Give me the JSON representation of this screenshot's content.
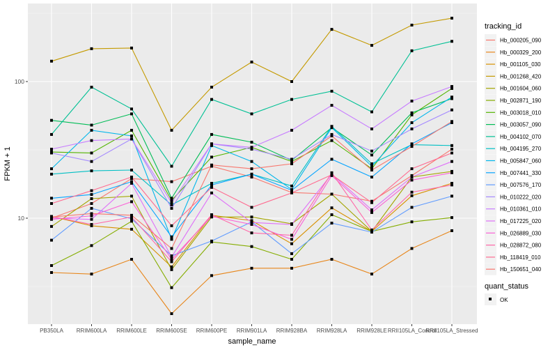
{
  "chart_data": {
    "type": "line",
    "title": "",
    "xlabel": "sample_name",
    "ylabel": "FPKM + 1",
    "yscale": "log10",
    "ylim": [
      1.75,
      400
    ],
    "yticks": [
      10,
      100
    ],
    "ytick_labels": [
      "10",
      "100"
    ],
    "grid": true,
    "legend_position": "right",
    "categories": [
      "PB350LA",
      "RRIM600LA",
      "RRIM600LE",
      "RRIM600SE",
      "RRIM600PE",
      "RRIM901LA",
      "RRIM928BA",
      "RRIM928LA",
      "RRIM928LE",
      "RRII105LA_Control",
      "RRII105LA_Stressed"
    ],
    "legend_title": "tracking_id",
    "shape_legend_title": "quant_status",
    "shape_legend_label": "OK",
    "series": [
      {
        "name": "Hb_000205_090",
        "color": "#F8766D",
        "values": [
          10.0,
          12.8,
          19.5,
          18.5,
          24,
          20,
          15.4,
          15.0,
          13.3,
          20.5,
          32
        ]
      },
      {
        "name": "Hb_000329_200",
        "color": "#E7861B",
        "values": [
          4.0,
          3.9,
          5.0,
          2.0,
          3.8,
          4.3,
          4.3,
          5.0,
          3.9,
          6.0,
          8.1
        ]
      },
      {
        "name": "Hb_001105_030",
        "color": "#D89000",
        "values": [
          10.3,
          8.8,
          8.3,
          4.4,
          10.5,
          9.6,
          6.5,
          11.9,
          8.0,
          14.6,
          18.0
        ]
      },
      {
        "name": "Hb_001268_420",
        "color": "#C49A00",
        "values": [
          141,
          174,
          176,
          44,
          91,
          139,
          100,
          241,
          184,
          259,
          291
        ]
      },
      {
        "name": "Hb_001604_060",
        "color": "#A3A500",
        "values": [
          8.7,
          13.9,
          14.5,
          4.2,
          10.2,
          10.2,
          9.1,
          15.0,
          8.0,
          20.0,
          22.0
        ]
      },
      {
        "name": "Hb_002871_190",
        "color": "#85AD00",
        "values": [
          4.5,
          6.3,
          9.5,
          3.1,
          6.7,
          6.2,
          5.0,
          10.6,
          8.0,
          9.4,
          10.1
        ]
      },
      {
        "name": "Hb_003018_010",
        "color": "#53B400",
        "values": [
          30.5,
          30.0,
          44,
          13.5,
          28,
          33,
          26,
          37,
          23,
          57,
          89
        ]
      },
      {
        "name": "Hb_003057_090",
        "color": "#00BC56",
        "values": [
          52,
          48,
          58,
          14,
          41,
          36,
          26.5,
          46,
          29,
          59,
          75
        ]
      },
      {
        "name": "Hb_004102_070",
        "color": "#00C094",
        "values": [
          41,
          91,
          63,
          24,
          74,
          58,
          74,
          85,
          60,
          168,
          197
        ]
      },
      {
        "name": "Hb_004195_270",
        "color": "#00BFC4",
        "values": [
          21,
          22.2,
          22.5,
          12.5,
          18,
          21,
          17.2,
          47,
          25,
          34.5,
          34
        ]
      },
      {
        "name": "Hb_005847_060",
        "color": "#00B6EB",
        "values": [
          23,
          44,
          40,
          7.0,
          34,
          26,
          16.2,
          46,
          24,
          50,
          77
        ]
      },
      {
        "name": "Hb_007441_330",
        "color": "#06A4FF",
        "values": [
          14.0,
          14.9,
          18.5,
          7.3,
          17.5,
          21,
          16.0,
          27,
          20,
          35,
          50
        ]
      },
      {
        "name": "Hb_007576_170",
        "color": "#619CFF",
        "values": [
          6.9,
          11.8,
          9.9,
          5.3,
          6.8,
          9.4,
          5.5,
          9.2,
          7.9,
          12,
          14.5
        ]
      },
      {
        "name": "Hb_010222_020",
        "color": "#A58AFF",
        "values": [
          30,
          26,
          38,
          11.8,
          35,
          32,
          27,
          41,
          31,
          45,
          62
        ]
      },
      {
        "name": "Hb_010361_010",
        "color": "#C77CFF",
        "values": [
          32,
          37,
          38,
          13.0,
          35,
          33,
          44,
          67,
          45,
          72,
          92
        ]
      },
      {
        "name": "Hb_017225_020",
        "color": "#DF70F8",
        "values": [
          10.0,
          9.8,
          18.0,
          5.2,
          15.3,
          9.3,
          9.0,
          21,
          11.5,
          20,
          26
        ]
      },
      {
        "name": "Hb_026889_030",
        "color": "#FB61D7",
        "values": [
          9.8,
          10.4,
          13.2,
          5.0,
          10.3,
          9.0,
          7.0,
          20.5,
          11.0,
          19,
          21.5
        ]
      },
      {
        "name": "Hb_028872_080",
        "color": "#FF66A8",
        "values": [
          10.3,
          9.0,
          10.2,
          4.8,
          10.6,
          7.8,
          7.5,
          21.5,
          8.2,
          15.5,
          17.5
        ]
      },
      {
        "name": "Hb_118419_010",
        "color": "#FF6C91",
        "values": [
          12.8,
          15.9,
          20,
          8.8,
          16.8,
          12.0,
          15.3,
          20.8,
          13.0,
          23,
          30
        ]
      },
      {
        "name": "Hb_150651_040",
        "color": "#F8766D",
        "values": [
          10.2,
          10.8,
          10.5,
          6.0,
          24.5,
          23,
          25,
          40,
          22.5,
          33.5,
          51
        ]
      }
    ]
  }
}
